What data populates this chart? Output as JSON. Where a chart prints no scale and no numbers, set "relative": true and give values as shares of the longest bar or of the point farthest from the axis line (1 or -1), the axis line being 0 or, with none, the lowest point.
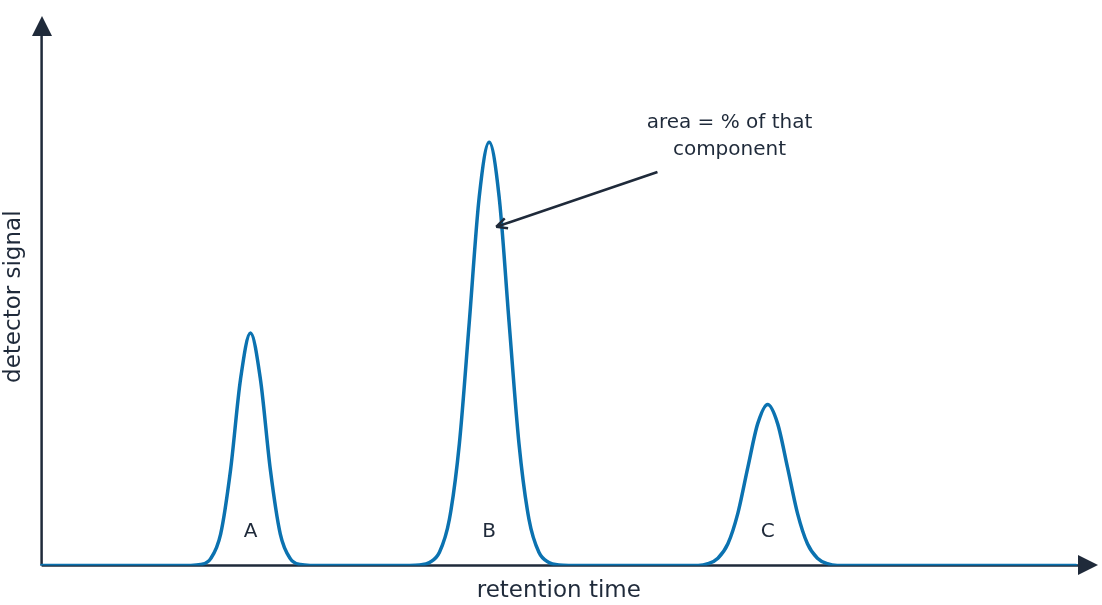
{
  "chart_data": {
    "type": "line",
    "relative": true,
    "xlabel": "retention time",
    "ylabel": "detector signal",
    "categories": [
      null,
      null,
      null,
      null,
      null,
      null,
      null,
      null,
      null,
      null,
      null,
      null,
      null,
      null,
      null,
      null,
      null,
      null,
      null,
      null,
      null,
      null,
      null,
      null,
      null,
      null,
      null,
      null,
      null,
      null,
      null,
      null,
      null,
      null,
      null,
      null,
      null,
      null,
      null,
      null,
      null,
      null,
      null,
      null,
      null,
      null,
      null,
      null,
      null,
      null,
      null,
      null,
      null,
      null,
      null,
      null,
      null,
      null,
      null,
      null,
      null,
      null,
      null,
      null,
      null,
      null,
      null,
      null,
      null,
      null,
      null,
      null,
      null,
      null,
      null,
      null,
      null,
      null,
      null,
      null,
      null,
      null,
      null,
      null,
      null,
      null,
      null,
      null,
      null,
      null,
      null,
      null,
      null,
      null,
      null,
      null,
      null,
      null,
      null,
      null,
      null,
      null,
      null,
      null,
      null
    ],
    "series": [
      {
        "color": "#0b72b0",
        "values": [
          0,
          0,
          0,
          0,
          0,
          0,
          0,
          0,
          0,
          0,
          0,
          0,
          0,
          0,
          0,
          0,
          0.002,
          0.016,
          0.074,
          0.226,
          0.44,
          0.549,
          0.44,
          0.226,
          0.074,
          0.016,
          0.002,
          0,
          0,
          0,
          0,
          0,
          0,
          0,
          0,
          0,
          0,
          0,
          0.001,
          0.007,
          0.031,
          0.109,
          0.287,
          0.575,
          0.871,
          1,
          0.871,
          0.575,
          0.287,
          0.109,
          0.031,
          0.007,
          0.001,
          0,
          0,
          0,
          0,
          0,
          0,
          0,
          0,
          0,
          0,
          0,
          0,
          0,
          0,
          0.004,
          0.017,
          0.051,
          0.123,
          0.231,
          0.335,
          0.38,
          0.335,
          0.231,
          0.123,
          0.051,
          0.017,
          0.004,
          0,
          0,
          0,
          0,
          0,
          0,
          0,
          0,
          0,
          0,
          0,
          0,
          0,
          0,
          0,
          0,
          0,
          0,
          0,
          0,
          0,
          0,
          0,
          0,
          0
        ]
      }
    ],
    "annotations": [
      "A",
      "B",
      "C",
      "area = % of that component"
    ],
    "grid": false,
    "legend": false,
    "marker": "none",
    "line_style": "solid",
    "tick_labels": false
  }
}
